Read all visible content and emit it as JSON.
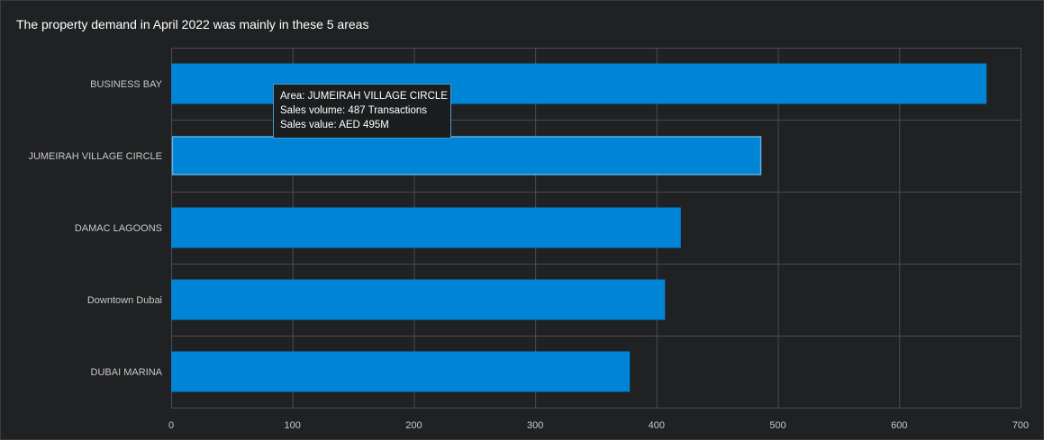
{
  "title": "The property demand in April 2022 was mainly in these 5 areas",
  "tooltip": {
    "area": "Area: JUMEIRAH VILLAGE CIRCLE",
    "volume": "Sales volume: 487 Transactions",
    "value": "Sales value: AED 495M"
  },
  "colors": {
    "bar": "#0084d6",
    "highlight_border": "#5fb0e0",
    "grid": "#4a4d50",
    "background": "#1f2123"
  },
  "chart_data": {
    "type": "bar",
    "orientation": "horizontal",
    "categories": [
      "BUSINESS BAY",
      "JUMEIRAH VILLAGE CIRCLE",
      "DAMAC LAGOONS",
      "Downtown Dubai",
      "DUBAI MARINA"
    ],
    "values": [
      672,
      487,
      420,
      407,
      378
    ],
    "title": "The property demand in April 2022 was mainly in these 5 areas",
    "xlim": [
      0,
      700
    ],
    "xticks": [
      0,
      100,
      200,
      300,
      400,
      500,
      600,
      700
    ],
    "grid": true,
    "highlighted": "JUMEIRAH VILLAGE CIRCLE"
  }
}
